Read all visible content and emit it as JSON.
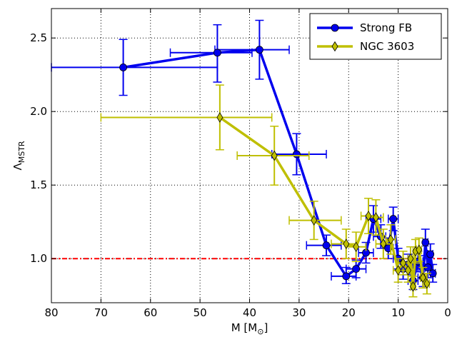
{
  "chart_data": {
    "type": "line",
    "xlabel": "M [M",
    "xlabel_sub": "⊙",
    "xlabel_close": "]",
    "ylabel": "Λ",
    "ylabel_sub": "MSTR",
    "xlim": [
      80,
      0
    ],
    "ylim": [
      0.7,
      2.7
    ],
    "x_inverted": true,
    "grid": true,
    "xticks": [
      "80",
      "70",
      "60",
      "50",
      "40",
      "30",
      "20",
      "10",
      "0"
    ],
    "xtick_values": [
      80,
      70,
      60,
      50,
      40,
      30,
      20,
      10,
      0
    ],
    "yticks": [
      "1.0",
      "1.5",
      "2.0",
      "2.5"
    ],
    "ytick_values": [
      1.0,
      1.5,
      2.0,
      2.5
    ],
    "reference_line": {
      "y": 1.0,
      "color": "#ff0000",
      "style": "dash-dot"
    },
    "legend_position": "top-right",
    "series": [
      {
        "name": "Strong FB",
        "color": "#0000ee",
        "marker": "circle",
        "points": [
          {
            "x": 65.5,
            "y": 2.3,
            "xlo": 80.0,
            "xhi": 46.5,
            "ylo": 2.11,
            "yhi": 2.49
          },
          {
            "x": 46.5,
            "y": 2.4,
            "xlo": 56.0,
            "xhi": 39.5,
            "ylo": 2.2,
            "yhi": 2.59
          },
          {
            "x": 38.0,
            "y": 2.42,
            "xlo": 47.0,
            "xhi": 32.0,
            "ylo": 2.22,
            "yhi": 2.62
          },
          {
            "x": 30.5,
            "y": 1.71,
            "xlo": 35.5,
            "xhi": 24.5,
            "ylo": 1.57,
            "yhi": 1.85
          },
          {
            "x": 24.5,
            "y": 1.09,
            "xlo": 28.5,
            "xhi": 21.5,
            "ylo": 1.02,
            "yhi": 1.16
          },
          {
            "x": 20.5,
            "y": 0.88,
            "xlo": 23.5,
            "xhi": 18.5,
            "ylo": 0.83,
            "yhi": 0.94
          },
          {
            "x": 18.5,
            "y": 0.93,
            "xlo": 20.5,
            "xhi": 16.5,
            "ylo": 0.87,
            "yhi": 0.99
          },
          {
            "x": 16.5,
            "y": 1.04,
            "xlo": 18.0,
            "xhi": 15.0,
            "ylo": 0.97,
            "yhi": 1.11
          },
          {
            "x": 15.0,
            "y": 1.27,
            "xlo": 16.5,
            "xhi": 13.5,
            "ylo": 1.18,
            "yhi": 1.36
          },
          {
            "x": 13.5,
            "y": 1.15,
            "xlo": 15.0,
            "xhi": 12.5,
            "ylo": 1.07,
            "yhi": 1.23
          },
          {
            "x": 12.0,
            "y": 1.07,
            "xlo": 13.0,
            "xhi": 11.0,
            "ylo": 1.0,
            "yhi": 1.14
          },
          {
            "x": 11.0,
            "y": 1.27,
            "xlo": 12.0,
            "xhi": 10.0,
            "ylo": 1.19,
            "yhi": 1.35
          },
          {
            "x": 10.0,
            "y": 1.0,
            "xlo": 11.0,
            "xhi": 9.0,
            "ylo": 0.93,
            "yhi": 1.07
          },
          {
            "x": 9.0,
            "y": 0.93,
            "xlo": 10.0,
            "xhi": 8.0,
            "ylo": 0.86,
            "yhi": 1.0
          },
          {
            "x": 8.0,
            "y": 0.96,
            "xlo": 9.0,
            "xhi": 7.0,
            "ylo": 0.89,
            "yhi": 1.03
          },
          {
            "x": 7.0,
            "y": 0.85,
            "xlo": 8.0,
            "xhi": 6.0,
            "ylo": 0.79,
            "yhi": 0.91
          },
          {
            "x": 6.0,
            "y": 0.98,
            "xlo": 7.0,
            "xhi": 5.0,
            "ylo": 0.91,
            "yhi": 1.05
          },
          {
            "x": 5.0,
            "y": 0.87,
            "xlo": 6.0,
            "xhi": 4.5,
            "ylo": 0.81,
            "yhi": 0.93
          },
          {
            "x": 4.5,
            "y": 1.11,
            "xlo": 5.0,
            "xhi": 4.0,
            "ylo": 1.02,
            "yhi": 1.2
          },
          {
            "x": 4.0,
            "y": 0.94,
            "xlo": 4.5,
            "xhi": 3.5,
            "ylo": 0.87,
            "yhi": 1.01
          },
          {
            "x": 3.5,
            "y": 1.03,
            "xlo": 4.0,
            "xhi": 3.0,
            "ylo": 0.96,
            "yhi": 1.1
          },
          {
            "x": 3.0,
            "y": 0.9,
            "xlo": 3.5,
            "xhi": 2.5,
            "ylo": 0.84,
            "yhi": 0.96
          }
        ]
      },
      {
        "name": "NGC 3603",
        "color": "#bfbf00",
        "marker": "diamond",
        "points": [
          {
            "x": 46.0,
            "y": 1.96,
            "xlo": 70.0,
            "xhi": 35.5,
            "ylo": 1.74,
            "yhi": 2.18
          },
          {
            "x": 35.0,
            "y": 1.7,
            "xlo": 42.5,
            "xhi": 28.0,
            "ylo": 1.5,
            "yhi": 1.9
          },
          {
            "x": 27.0,
            "y": 1.26,
            "xlo": 32.0,
            "xhi": 21.5,
            "ylo": 1.13,
            "yhi": 1.39
          },
          {
            "x": 20.5,
            "y": 1.1,
            "xlo": 23.5,
            "xhi": 18.5,
            "ylo": 1.0,
            "yhi": 1.2
          },
          {
            "x": 18.5,
            "y": 1.08,
            "xlo": 20.5,
            "xhi": 16.5,
            "ylo": 0.98,
            "yhi": 1.18
          },
          {
            "x": 16.0,
            "y": 1.29,
            "xlo": 17.5,
            "xhi": 14.5,
            "ylo": 1.17,
            "yhi": 1.41
          },
          {
            "x": 14.5,
            "y": 1.28,
            "xlo": 16.0,
            "xhi": 13.0,
            "ylo": 1.16,
            "yhi": 1.4
          },
          {
            "x": 13.0,
            "y": 1.1,
            "xlo": 14.5,
            "xhi": 11.5,
            "ylo": 1.0,
            "yhi": 1.2
          },
          {
            "x": 11.5,
            "y": 1.13,
            "xlo": 12.5,
            "xhi": 10.5,
            "ylo": 1.03,
            "yhi": 1.23
          },
          {
            "x": 10.0,
            "y": 0.92,
            "xlo": 11.0,
            "xhi": 9.0,
            "ylo": 0.84,
            "yhi": 1.0
          },
          {
            "x": 9.0,
            "y": 0.97,
            "xlo": 10.0,
            "xhi": 8.0,
            "ylo": 0.89,
            "yhi": 1.05
          },
          {
            "x": 8.0,
            "y": 0.92,
            "xlo": 9.0,
            "xhi": 7.5,
            "ylo": 0.84,
            "yhi": 1.0
          },
          {
            "x": 7.5,
            "y": 1.0,
            "xlo": 8.0,
            "xhi": 7.0,
            "ylo": 0.92,
            "yhi": 1.08
          },
          {
            "x": 7.0,
            "y": 0.81,
            "xlo": 7.5,
            "xhi": 6.5,
            "ylo": 0.74,
            "yhi": 0.88
          },
          {
            "x": 6.5,
            "y": 1.05,
            "xlo": 7.0,
            "xhi": 6.0,
            "ylo": 0.97,
            "yhi": 1.13
          },
          {
            "x": 5.8,
            "y": 1.06,
            "xlo": 6.3,
            "xhi": 5.3,
            "ylo": 0.98,
            "yhi": 1.14
          },
          {
            "x": 5.0,
            "y": 0.87,
            "xlo": 5.5,
            "xhi": 4.5,
            "ylo": 0.8,
            "yhi": 0.94
          },
          {
            "x": 4.2,
            "y": 0.83,
            "xlo": 4.7,
            "xhi": 3.7,
            "ylo": 0.76,
            "yhi": 0.9
          }
        ]
      }
    ]
  }
}
